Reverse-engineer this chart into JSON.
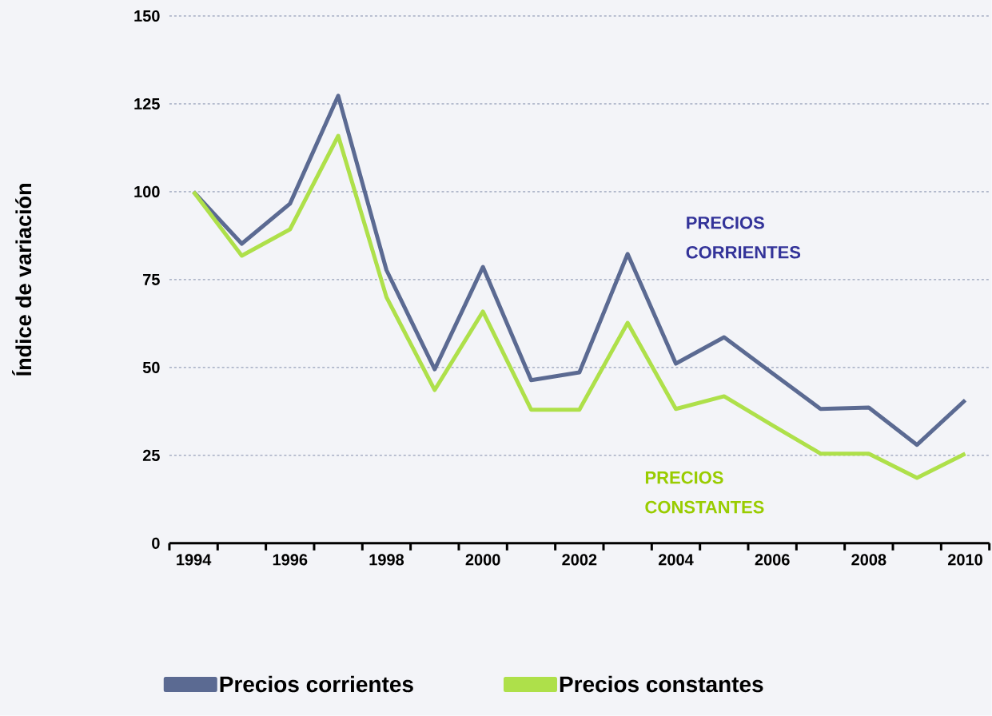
{
  "chart_data": {
    "type": "line",
    "ylabel": "Índice de variación",
    "categories": [
      "1994",
      null,
      "1996",
      null,
      "1998",
      null,
      "2000",
      null,
      "2002",
      null,
      "2004",
      null,
      "2006",
      null,
      "2008",
      null,
      "2010"
    ],
    "series": [
      {
        "name": "Precios corrientes",
        "color": "#5b6a92",
        "values": [
          100,
          85.2,
          96.6,
          127.3,
          77.7,
          49.5,
          78.6,
          46.4,
          48.6,
          82.3,
          51.1,
          58.6,
          48.4,
          38.2,
          38.6,
          28,
          40.7
        ]
      },
      {
        "name": "Precios constantes",
        "color": "#aee04a",
        "values": [
          100,
          81.8,
          89.3,
          115.9,
          70,
          43.6,
          65.9,
          38,
          38,
          62.7,
          38.2,
          41.8,
          33.6,
          25.5,
          25.5,
          18.6,
          25.5
        ]
      }
    ],
    "ylim": [
      0,
      150
    ],
    "yticks": [
      0,
      25,
      50,
      75,
      100,
      125,
      150
    ],
    "grid": "y",
    "legend": "bottom",
    "annotations": [
      "PRECIOS CORRIENTES",
      "PRECIOS CONSTANTES"
    ]
  }
}
